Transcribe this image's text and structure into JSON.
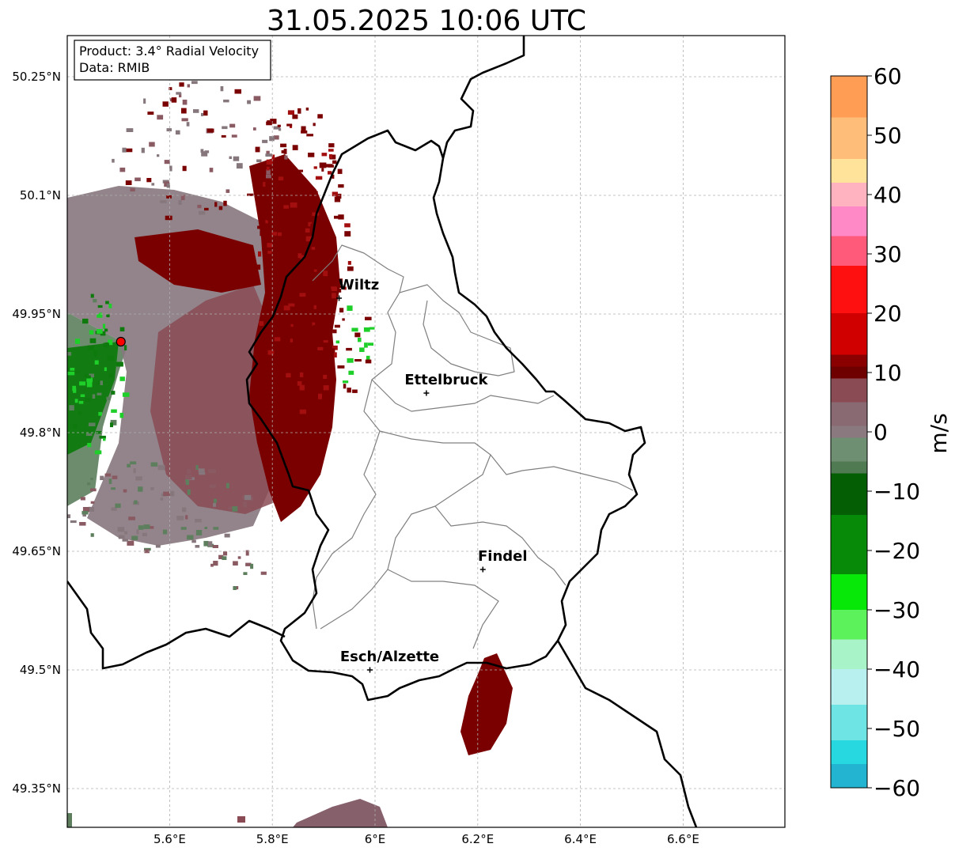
{
  "title": "31.05.2025 10:06 UTC",
  "info_box": {
    "line1": "Product: 3.4° Radial Velocity",
    "line2": "Data: RMIB"
  },
  "map": {
    "lon_range": [
      5.4,
      6.8
    ],
    "lat_range": [
      49.3,
      50.3
    ],
    "lon_ticks": [
      {
        "value": 5.6,
        "label": "5.6°E"
      },
      {
        "value": 5.8,
        "label": "5.8°E"
      },
      {
        "value": 6.0,
        "label": "6°E"
      },
      {
        "value": 6.2,
        "label": "6.2°E"
      },
      {
        "value": 6.4,
        "label": "6.4°E"
      },
      {
        "value": 6.6,
        "label": "6.6°E"
      }
    ],
    "lat_ticks": [
      {
        "value": 50.25,
        "label": "50.25°N"
      },
      {
        "value": 50.1,
        "label": "50.1°N"
      },
      {
        "value": 49.95,
        "label": "49.95°N"
      },
      {
        "value": 49.8,
        "label": "49.8°N"
      },
      {
        "value": 49.65,
        "label": "49.65°N"
      },
      {
        "value": 49.5,
        "label": "49.5°N"
      },
      {
        "value": 49.35,
        "label": "49.35°N"
      }
    ],
    "cities": [
      {
        "name": "Wiltz",
        "lon": 5.93,
        "lat": 49.97
      },
      {
        "name": "Ettelbruck",
        "lon": 6.1,
        "lat": 49.85
      },
      {
        "name": "Findel",
        "lon": 6.21,
        "lat": 49.627
      },
      {
        "name": "Esch/Alzette",
        "lon": 5.99,
        "lat": 49.5
      }
    ],
    "radar_site": {
      "lon": 5.505,
      "lat": 49.915,
      "color": "#ff0000"
    },
    "palette": {
      "strong_outbound": "#7a0000",
      "outbound": "#a30f0f",
      "weak_outbound": "#8a5a63",
      "near_zero": "#86777d",
      "weak_inbound": "#5d7f5d",
      "inbound": "#0e7a0e",
      "bright_inbound": "#1ecf2a"
    }
  },
  "colorbar": {
    "label": "m/s",
    "min": -60,
    "max": 60,
    "ticks": [
      {
        "value": 60,
        "label": "60"
      },
      {
        "value": 50,
        "label": "50"
      },
      {
        "value": 40,
        "label": "40"
      },
      {
        "value": 30,
        "label": "30"
      },
      {
        "value": 20,
        "label": "20"
      },
      {
        "value": 10,
        "label": "10"
      },
      {
        "value": 0,
        "label": "0"
      },
      {
        "value": -10,
        "label": "−10"
      },
      {
        "value": -20,
        "label": "−20"
      },
      {
        "value": -30,
        "label": "−30"
      },
      {
        "value": -40,
        "label": "−40"
      },
      {
        "value": -50,
        "label": "−50"
      },
      {
        "value": -60,
        "label": "−60"
      }
    ],
    "stops": [
      {
        "v": 60,
        "color": "#ff9d55"
      },
      {
        "v": 53,
        "color": "#ffbd7a"
      },
      {
        "v": 46,
        "color": "#ffe39b"
      },
      {
        "v": 42,
        "color": "#ffb2c0"
      },
      {
        "v": 38,
        "color": "#ff88c6"
      },
      {
        "v": 33,
        "color": "#ff5a7a"
      },
      {
        "v": 28,
        "color": "#ff1010"
      },
      {
        "v": 20,
        "color": "#d00000"
      },
      {
        "v": 13,
        "color": "#8a0000"
      },
      {
        "v": 11,
        "color": "#6e0000"
      },
      {
        "v": 9,
        "color": "#8a4b55"
      },
      {
        "v": 5,
        "color": "#8a6a72"
      },
      {
        "v": 1,
        "color": "#8a7a80"
      },
      {
        "v": -1,
        "color": "#6f8f72"
      },
      {
        "v": -5,
        "color": "#507a52"
      },
      {
        "v": -7,
        "color": "#045e04"
      },
      {
        "v": -14,
        "color": "#078a07"
      },
      {
        "v": -24,
        "color": "#08e808"
      },
      {
        "v": -30,
        "color": "#5cf25c"
      },
      {
        "v": -35,
        "color": "#a8f3c8"
      },
      {
        "v": -40,
        "color": "#b8f0f0"
      },
      {
        "v": -46,
        "color": "#6ee4e4"
      },
      {
        "v": -52,
        "color": "#28d8e0"
      },
      {
        "v": -56,
        "color": "#22b4d0"
      },
      {
        "v": -60,
        "color": "#1e88c8"
      }
    ]
  }
}
